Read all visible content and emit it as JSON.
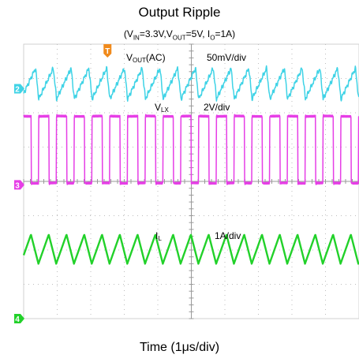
{
  "chart_data": {
    "type": "line",
    "title": "Output Ripple",
    "subtitle": {
      "parts": [
        {
          "t": "(V"
        },
        {
          "t": "IN",
          "sub": true
        },
        {
          "t": "=3.3V,V"
        },
        {
          "t": "OUT",
          "sub": true
        },
        {
          "t": "=5V, I"
        },
        {
          "t": "O",
          "sub": true
        },
        {
          "t": "=1A)"
        }
      ]
    },
    "xlabel": "Time (1μs/div)",
    "x_divisions": 10,
    "y_divisions": 8,
    "grid": true,
    "trigger_marker": "T",
    "channels": [
      {
        "id": "2",
        "name_parts": [
          {
            "t": "V"
          },
          {
            "t": "OUT",
            "sub": true
          },
          {
            "t": "(AC)"
          }
        ],
        "scale": "50mV/div",
        "color": "#3fd3e6",
        "marker_div": 6.7,
        "waveform": "sawtooth",
        "period_div": 0.53,
        "low_div": 6.4,
        "high_div": 7.3
      },
      {
        "id": "3",
        "name_parts": [
          {
            "t": "V"
          },
          {
            "t": "LX",
            "sub": true
          }
        ],
        "scale": "2V/div",
        "color": "#e63ee6",
        "marker_div": 3.9,
        "waveform": "square",
        "period_div": 0.53,
        "duty": 0.58,
        "low_div": 3.95,
        "high_div": 5.9
      },
      {
        "id": "4",
        "name_parts": [
          {
            "t": "I"
          },
          {
            "t": "L",
            "sub": true
          }
        ],
        "scale": "1A/div",
        "color": "#22d12a",
        "marker_div": 0.0,
        "waveform": "triangle",
        "period_div": 0.53,
        "duty": 0.58,
        "low_div": 1.6,
        "high_div": 2.45
      }
    ]
  }
}
